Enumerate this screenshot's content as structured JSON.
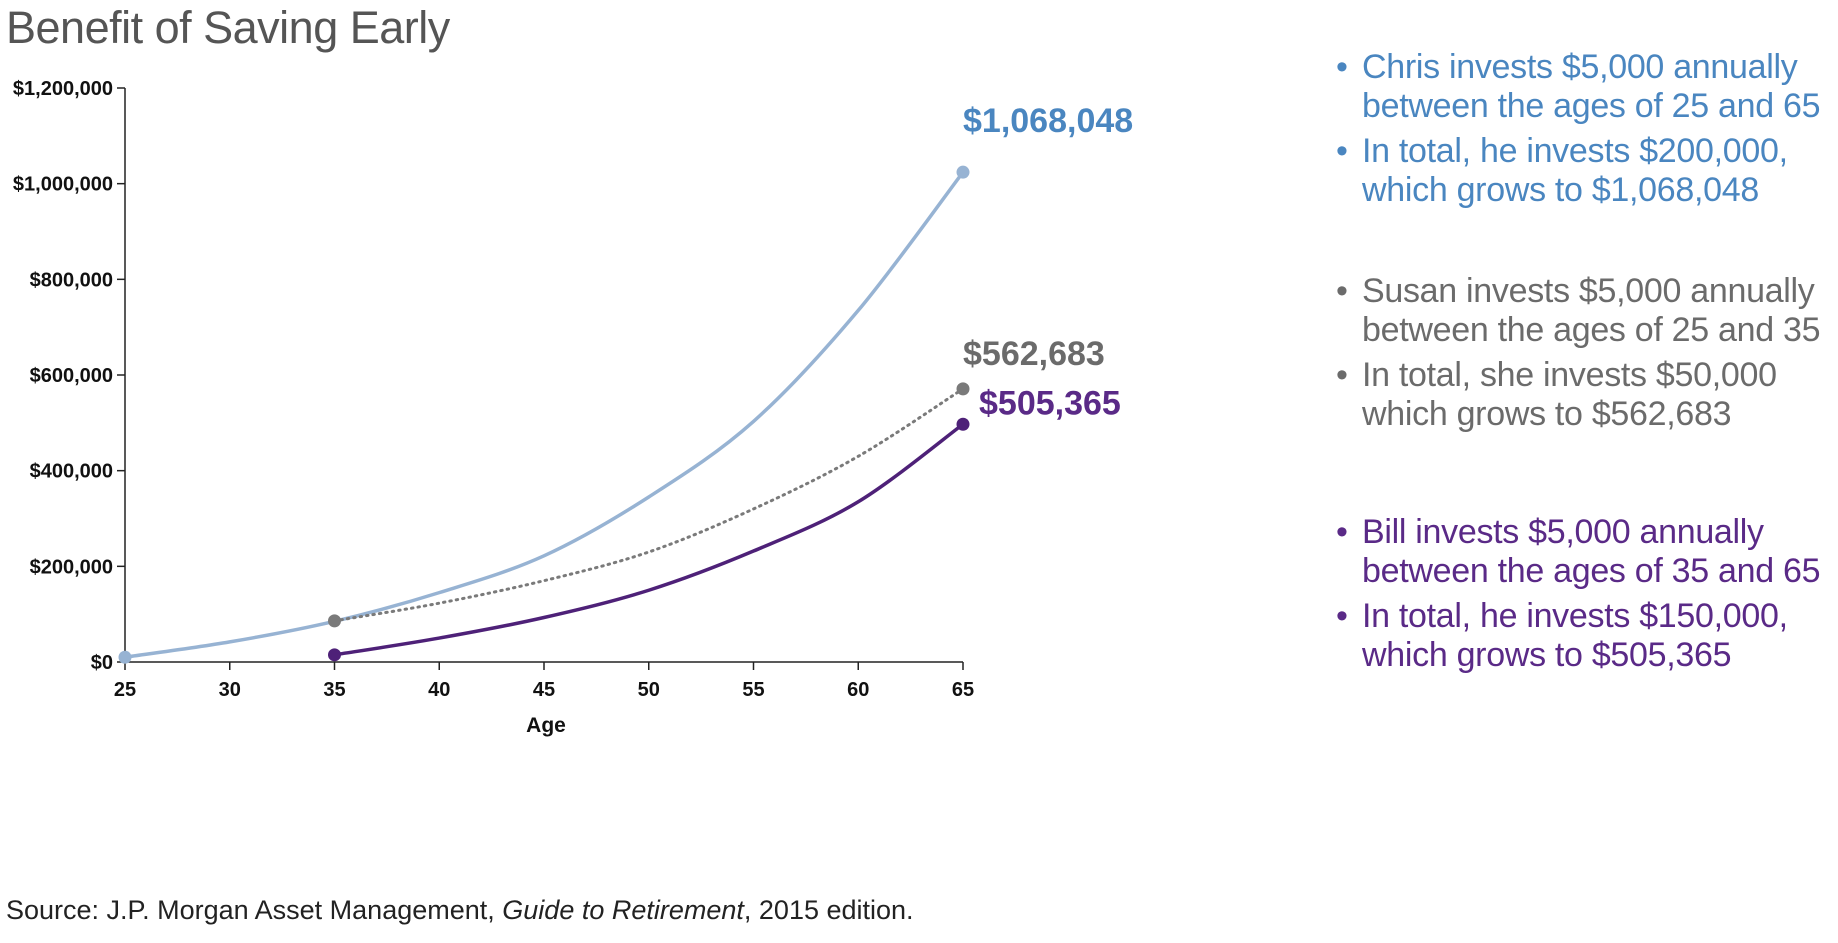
{
  "title": "Benefit of Saving Early",
  "chart_data": {
    "type": "line",
    "xlabel": "Age",
    "ylabel": "",
    "xlim": [
      25,
      65
    ],
    "ylim": [
      0,
      1200000
    ],
    "x_ticks": [
      "25",
      "30",
      "35",
      "40",
      "45",
      "50",
      "55",
      "60",
      "65"
    ],
    "y_ticks": [
      "$0",
      "$200,000",
      "$400,000",
      "$600,000",
      "$800,000",
      "$1,000,000",
      "$1,200,000"
    ],
    "grid": false,
    "series": [
      {
        "color": "#97b3d3",
        "style": "solid",
        "end_label": "$1,068,048",
        "end_label_color": "#4a86c0",
        "x": [
          25,
          30,
          35,
          40,
          45,
          50,
          55,
          60,
          65
        ],
        "y": [
          10000,
          42000,
          85000,
          145000,
          222000,
          345000,
          503000,
          735000,
          1024000
        ]
      },
      {
        "color": "#7a7a7a",
        "style": "dotted",
        "end_label": "$562,683",
        "end_label_color": "#6b6b6b",
        "x": [
          35,
          40,
          45,
          50,
          55,
          60,
          65
        ],
        "y": [
          86000,
          123000,
          170000,
          230000,
          320000,
          430000,
          571000
        ]
      },
      {
        "color": "#4e2178",
        "style": "solid",
        "end_label": "$505,365",
        "end_label_color": "#5a2a87",
        "x": [
          35,
          40,
          45,
          50,
          55,
          60,
          65
        ],
        "y": [
          15000,
          50000,
          93000,
          150000,
          232000,
          335000,
          497000
        ]
      }
    ]
  },
  "notes": [
    {
      "color": "#4a86c0",
      "items": [
        [
          "Chris invests $5,000 annually",
          "between the ages of 25 and 65"
        ],
        [
          "In total, he invests $200,000,",
          "which grows to $1,068,048"
        ]
      ]
    },
    {
      "color": "#6b6b6b",
      "items": [
        [
          "Susan invests $5,000 annually",
          "between the ages of 25 and 35"
        ],
        [
          "In total, she invests $50,000",
          "which grows to $562,683"
        ]
      ]
    },
    {
      "color": "#5a2a87",
      "items": [
        [
          "Bill invests $5,000 annually",
          "between the ages of 35 and 65"
        ],
        [
          "In total, he invests $150,000,",
          "which grows to $505,365"
        ]
      ]
    }
  ],
  "source": {
    "prefix": "Source: J.P. Morgan Asset Management, ",
    "italic": "Guide to Retirement",
    "suffix": ", 2015 edition."
  }
}
